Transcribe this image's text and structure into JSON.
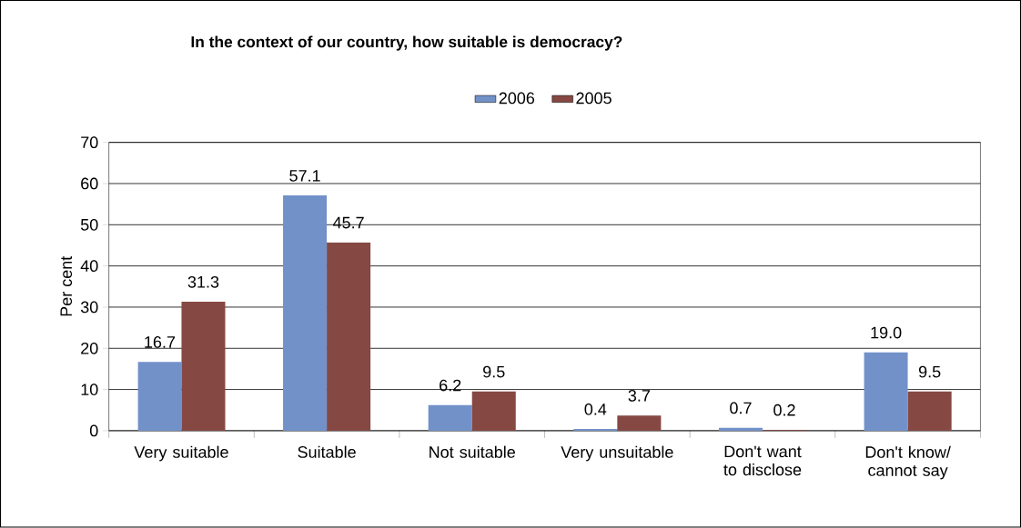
{
  "chart_data": {
    "type": "bar",
    "title": "In the context of our country, how suitable is democracy?",
    "ylabel": "Per cent",
    "categories": [
      "Very suitable",
      "Suitable",
      "Not suitable",
      "Very unsuitable",
      "Don't want to disclose",
      "Don't know/ cannot say"
    ],
    "series": [
      {
        "name": "2006",
        "color": "#7291c9",
        "values": [
          16.7,
          57.1,
          6.2,
          0.4,
          0.7,
          19.0
        ],
        "value_labels": [
          "16.7",
          "57.1",
          "6.2",
          "0.4",
          "0.7",
          "19.0"
        ]
      },
      {
        "name": "2005",
        "color": "#864843",
        "values": [
          31.3,
          45.7,
          9.5,
          3.7,
          0.2,
          9.5
        ],
        "value_labels": [
          "31.3",
          "45.7",
          "9.5",
          "3.7",
          "0.2",
          "9.5"
        ]
      }
    ],
    "ylim": [
      0,
      70
    ],
    "yticks": [
      0,
      10,
      20,
      30,
      40,
      50,
      60,
      70
    ],
    "grid": "y",
    "legend": "top"
  }
}
